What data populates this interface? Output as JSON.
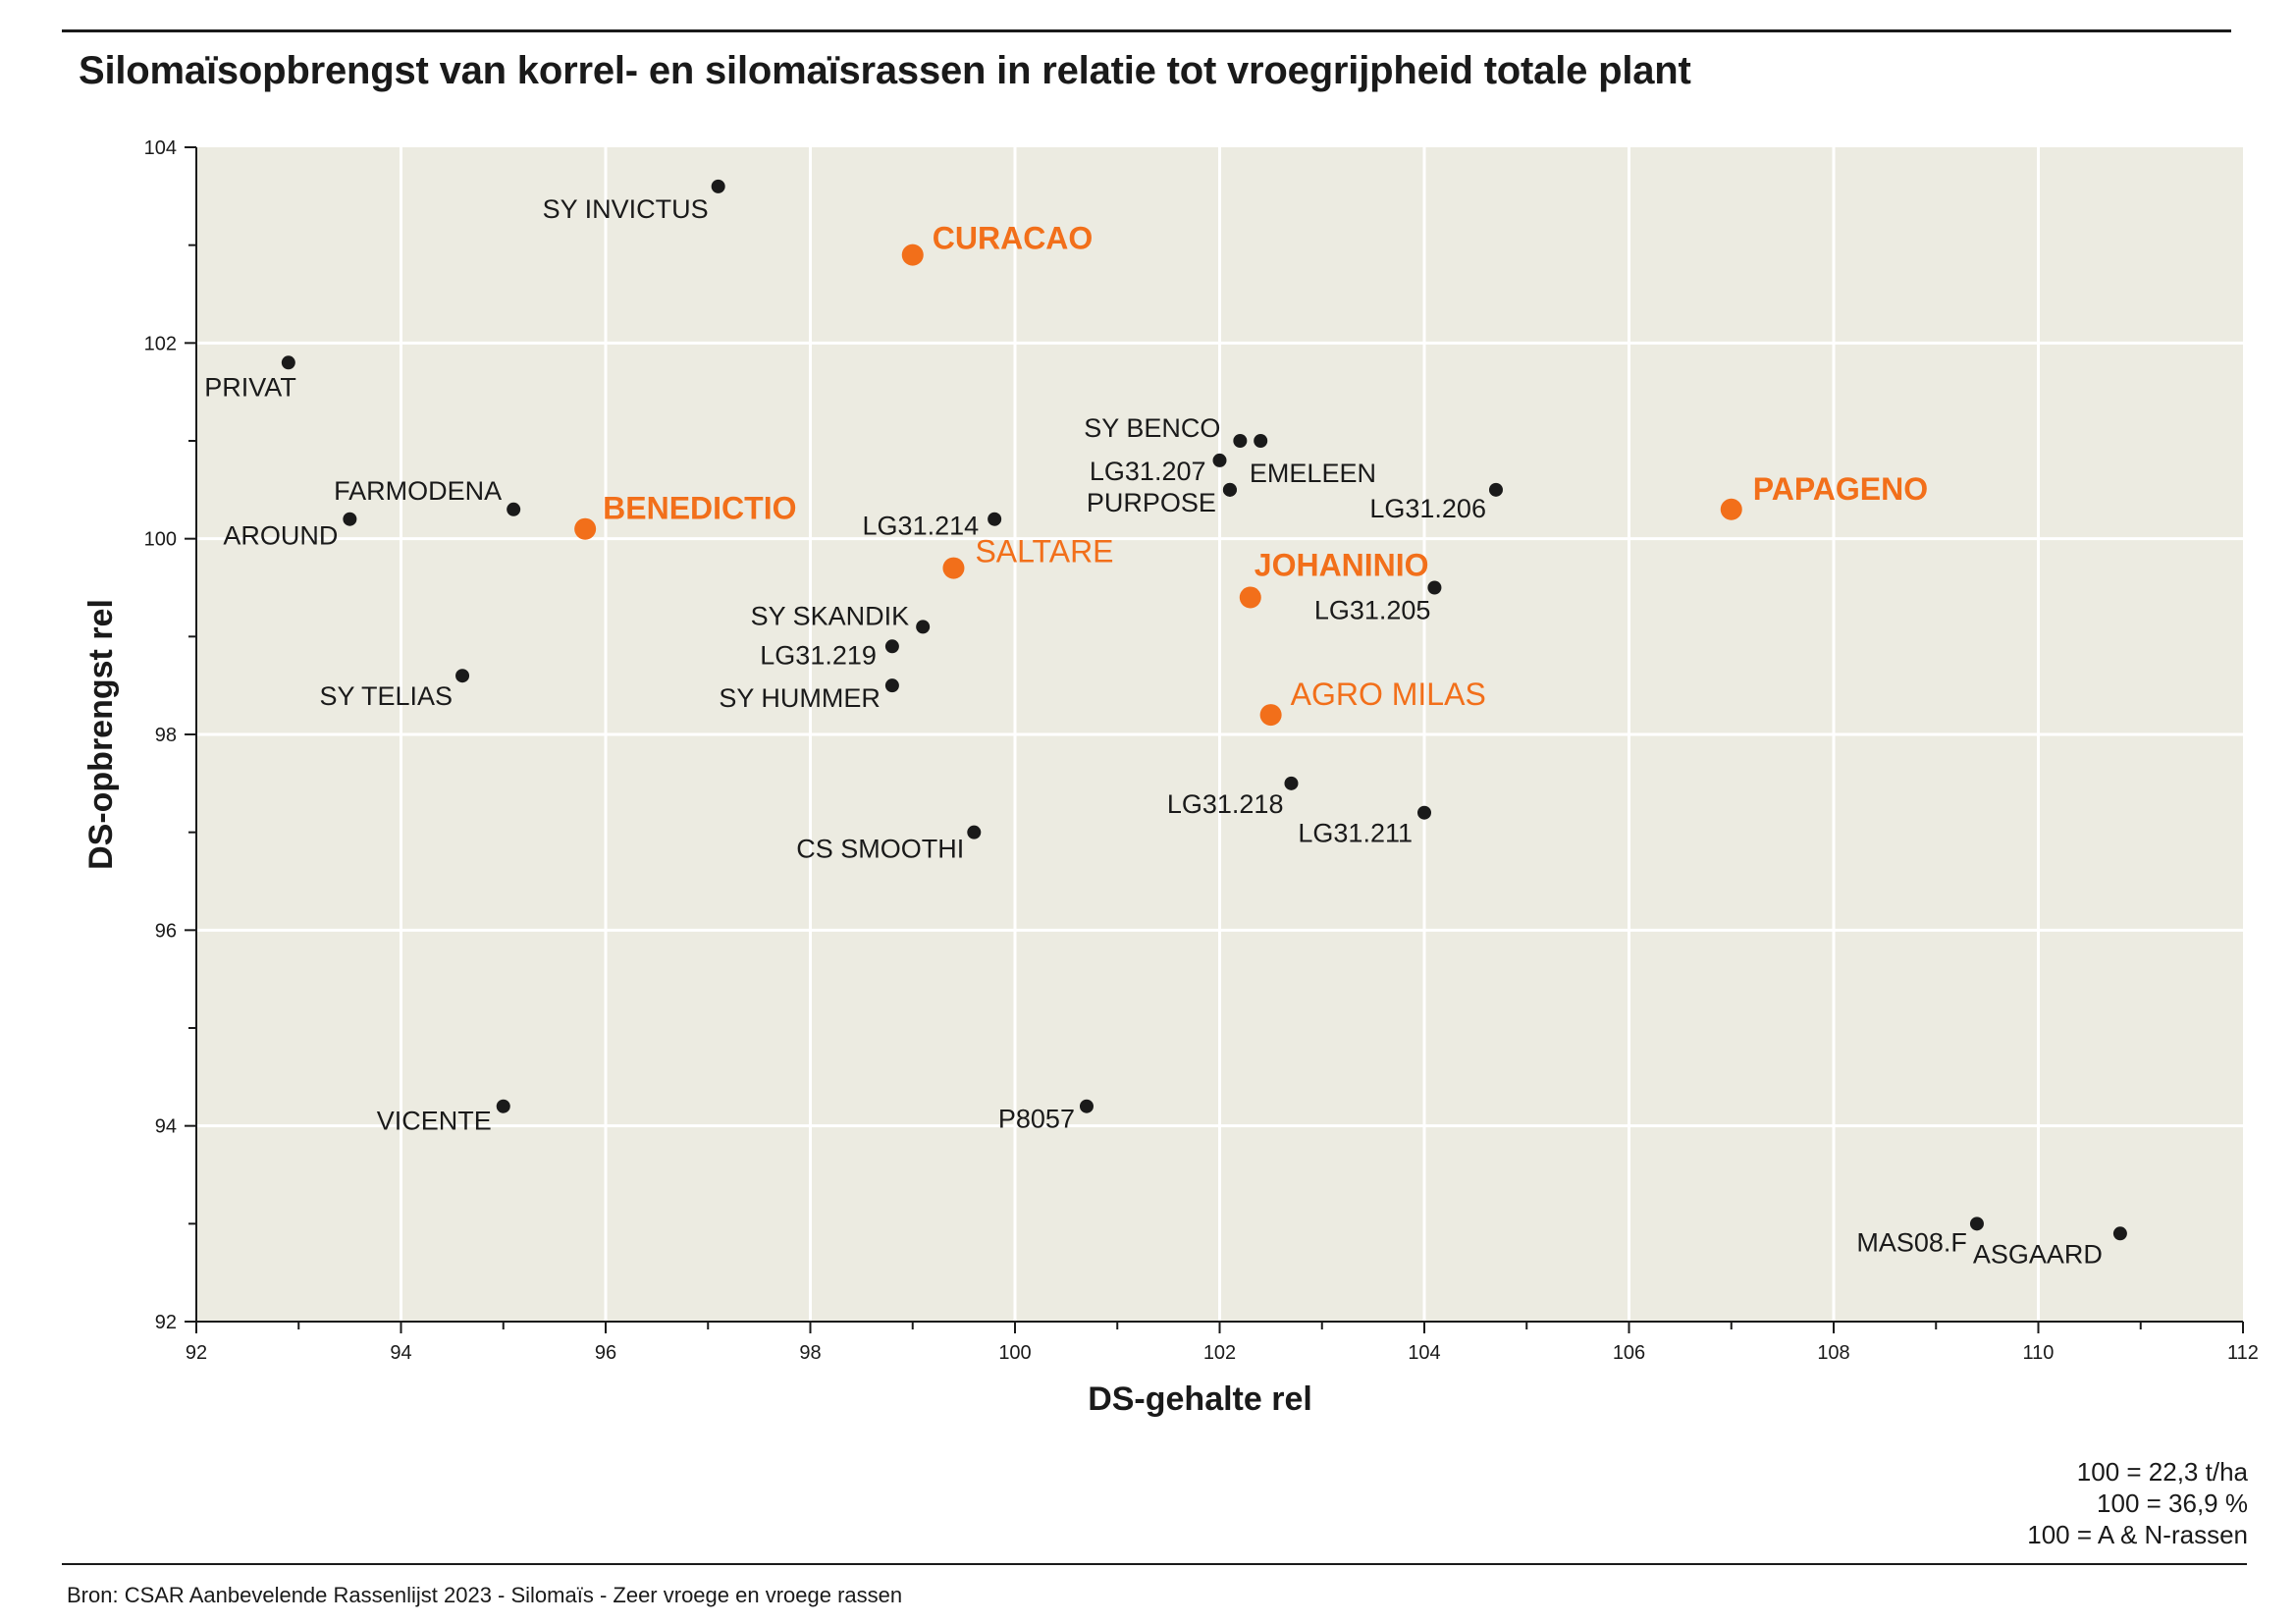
{
  "title": "Silomaïsopbrengst van korrel- en silomaïsrassen in relatie tot vroegrijpheid totale plant",
  "notes": [
    "100 = 22,3 t/ha",
    "100 = 36,9 %",
    "100 = A & N-rassen"
  ],
  "source": "Bron: CSAR Aanbevelende Rassenlijst 2023 - Silomaïs - Zeer vroege en vroege rassen",
  "colors": {
    "plot_bg": "#ecebe1",
    "grid": "#ffffff",
    "normal": "#1a1a1a",
    "highlight": "#f26f1a"
  },
  "chart_data": {
    "type": "scatter",
    "title": "Silomaïsopbrengst van korrel- en silomaïsrassen in relatie tot vroegrijpheid totale plant",
    "xlabel": "DS-gehalte rel",
    "ylabel": "DS-opbrengst rel",
    "xlim": [
      92,
      112
    ],
    "ylim": [
      92,
      104
    ],
    "xticks": [
      92,
      94,
      96,
      98,
      100,
      102,
      104,
      106,
      108,
      110,
      112
    ],
    "yticks": [
      92,
      94,
      96,
      98,
      100,
      102,
      104
    ],
    "grid": true,
    "points": [
      {
        "label": "SY INVICTUS",
        "x": 97.1,
        "y": 103.6,
        "highlight": false,
        "bold": false
      },
      {
        "label": "CURACAO",
        "x": 99.0,
        "y": 102.9,
        "highlight": true,
        "bold": true
      },
      {
        "label": "PRIVAT",
        "x": 92.9,
        "y": 101.8,
        "highlight": false,
        "bold": false
      },
      {
        "label": "SY BENCO",
        "x": 102.2,
        "y": 101.0,
        "highlight": false,
        "bold": false
      },
      {
        "label": "",
        "x": 102.4,
        "y": 101.0,
        "highlight": false,
        "bold": false
      },
      {
        "label": "LG31.207",
        "x": 102.0,
        "y": 100.8,
        "highlight": false,
        "bold": false
      },
      {
        "label": "EMELEEN",
        "x": 102.1,
        "y": 100.5,
        "highlight": false,
        "bold": false
      },
      {
        "label": "PURPOSE",
        "x": 102.1,
        "y": 100.5,
        "highlight": false,
        "bold": false
      },
      {
        "label": "LG31.206",
        "x": 104.7,
        "y": 100.5,
        "highlight": false,
        "bold": false
      },
      {
        "label": "FARMODENA",
        "x": 95.1,
        "y": 100.3,
        "highlight": false,
        "bold": false
      },
      {
        "label": "AROUND",
        "x": 93.5,
        "y": 100.2,
        "highlight": false,
        "bold": false
      },
      {
        "label": "BENEDICTIO",
        "x": 95.8,
        "y": 100.1,
        "highlight": true,
        "bold": true
      },
      {
        "label": "LG31.214",
        "x": 99.8,
        "y": 100.2,
        "highlight": false,
        "bold": false
      },
      {
        "label": "PAPAGENO",
        "x": 107.0,
        "y": 100.3,
        "highlight": true,
        "bold": true
      },
      {
        "label": "SALTARE",
        "x": 99.4,
        "y": 99.7,
        "highlight": true,
        "bold": false
      },
      {
        "label": "JOHANINIO",
        "x": 102.3,
        "y": 99.4,
        "highlight": true,
        "bold": true
      },
      {
        "label": "LG31.205",
        "x": 104.1,
        "y": 99.5,
        "highlight": false,
        "bold": false
      },
      {
        "label": "SY SKANDIK",
        "x": 99.1,
        "y": 99.1,
        "highlight": false,
        "bold": false
      },
      {
        "label": "LG31.219",
        "x": 98.8,
        "y": 98.9,
        "highlight": false,
        "bold": false
      },
      {
        "label": "SY TELIAS",
        "x": 94.6,
        "y": 98.6,
        "highlight": false,
        "bold": false
      },
      {
        "label": "SY HUMMER",
        "x": 98.8,
        "y": 98.5,
        "highlight": false,
        "bold": false
      },
      {
        "label": "AGRO MILAS",
        "x": 102.5,
        "y": 98.2,
        "highlight": true,
        "bold": false
      },
      {
        "label": "LG31.218",
        "x": 102.7,
        "y": 97.5,
        "highlight": false,
        "bold": false
      },
      {
        "label": "LG31.211",
        "x": 104.0,
        "y": 97.2,
        "highlight": false,
        "bold": false
      },
      {
        "label": "CS SMOOTHI",
        "x": 99.6,
        "y": 97.0,
        "highlight": false,
        "bold": false
      },
      {
        "label": "VICENTE",
        "x": 95.0,
        "y": 94.2,
        "highlight": false,
        "bold": false
      },
      {
        "label": "P8057",
        "x": 100.7,
        "y": 94.2,
        "highlight": false,
        "bold": false
      },
      {
        "label": "MAS08.F",
        "x": 109.4,
        "y": 93.0,
        "highlight": false,
        "bold": false
      },
      {
        "label": "ASGAARD",
        "x": 110.8,
        "y": 92.9,
        "highlight": false,
        "bold": false
      }
    ]
  }
}
